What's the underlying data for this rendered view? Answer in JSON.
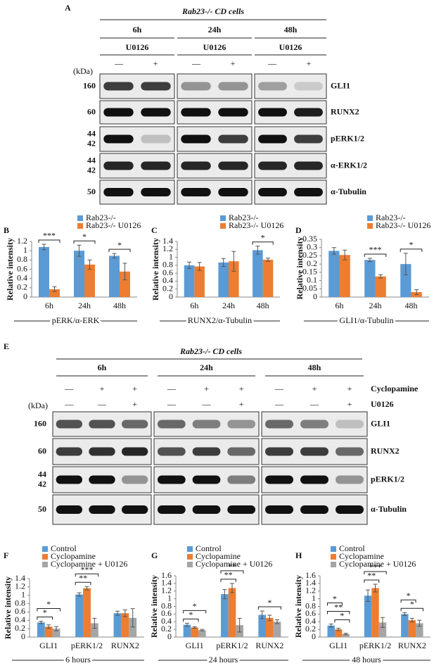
{
  "panel_a": {
    "label": "A",
    "title": "Rab23-/- CD cells",
    "kda_header": "(kDa)",
    "groups": [
      {
        "time": "6h",
        "treatment": "U0126",
        "lanes": [
          "—",
          "+"
        ]
      },
      {
        "time": "24h",
        "treatment": "U0126",
        "lanes": [
          "—",
          "+"
        ]
      },
      {
        "time": "48h",
        "treatment": "U0126",
        "lanes": [
          "—",
          "+"
        ]
      }
    ],
    "rows": [
      {
        "protein": "GLI1",
        "kda": [
          160
        ]
      },
      {
        "protein": "RUNX2",
        "kda": [
          60
        ]
      },
      {
        "protein": "pERK1/2",
        "kda": [
          44,
          42
        ]
      },
      {
        "protein": "α-ERK1/2",
        "kda": [
          44,
          42
        ]
      },
      {
        "protein": "α-Tubulin",
        "kda": [
          50
        ]
      }
    ]
  },
  "panel_e": {
    "label": "E",
    "title": "Rab23-/- CD cells",
    "kda_header": "(kDa)",
    "times": [
      "6h",
      "24h",
      "48h"
    ],
    "treatments": [
      {
        "name": "Cyclopamine",
        "signs": [
          "—",
          "+",
          "+",
          "—",
          "+",
          "+",
          "—",
          "+",
          "+"
        ]
      },
      {
        "name": "U0126",
        "signs": [
          "—",
          "—",
          "+",
          "—",
          "—",
          "+",
          "—",
          "—",
          "+"
        ]
      }
    ],
    "rows": [
      {
        "protein": "GLI1",
        "kda": [
          160
        ]
      },
      {
        "protein": "RUNX2",
        "kda": [
          60
        ]
      },
      {
        "protein": "pERK1/2",
        "kda": [
          44,
          42
        ]
      },
      {
        "protein": "α-Tubulin",
        "kda": [
          50
        ]
      }
    ]
  },
  "chart_data": [
    {
      "type": "bar",
      "label": "B",
      "y_label": "Relative intensity",
      "x_label": "pERK/α-ERK",
      "categories": [
        "6h",
        "24h",
        "48h"
      ],
      "ylim": [
        0,
        1.2
      ],
      "yticks": [
        0,
        0.2,
        0.4,
        0.6,
        0.8,
        1,
        1.2
      ],
      "series": [
        {
          "name": "Rab23-/-",
          "color": "#5b9bd5",
          "values": [
            1.08,
            1.0,
            0.89
          ],
          "errors": [
            0.06,
            0.12,
            0.05
          ]
        },
        {
          "name": "Rab23-/- U0126",
          "color": "#ed7d31",
          "values": [
            0.17,
            0.7,
            0.55
          ],
          "errors": [
            0.05,
            0.1,
            0.18
          ]
        }
      ],
      "significance": [
        {
          "text": "***",
          "category": "6h"
        },
        {
          "text": "*",
          "category": "24h"
        },
        {
          "text": "*",
          "category": "48h"
        }
      ]
    },
    {
      "type": "bar",
      "label": "C",
      "y_label": "Relative intensity",
      "x_label": "RUNX2/α-Tubulin",
      "categories": [
        "6h",
        "24h",
        "48h"
      ],
      "ylim": [
        0,
        1.4
      ],
      "yticks": [
        0,
        0.2,
        0.4,
        0.6,
        0.8,
        1,
        1.2,
        1.4
      ],
      "series": [
        {
          "name": "Rab23-/-",
          "color": "#5b9bd5",
          "values": [
            0.8,
            0.87,
            1.18
          ],
          "errors": [
            0.08,
            0.1,
            0.1
          ]
        },
        {
          "name": "Rab23-/- U0126",
          "color": "#ed7d31",
          "values": [
            0.77,
            0.9,
            0.94
          ],
          "errors": [
            0.1,
            0.25,
            0.04
          ]
        }
      ],
      "significance": [
        {
          "text": "*",
          "category": "48h"
        }
      ]
    },
    {
      "type": "bar",
      "label": "D",
      "y_label": "Relative intensity",
      "x_label": "GLI1/α-Tubulin",
      "categories": [
        "6h",
        "24h",
        "48h"
      ],
      "ylim": [
        0,
        0.35
      ],
      "yticks": [
        0,
        0.05,
        0.1,
        0.15,
        0.2,
        0.25,
        0.3,
        0.35
      ],
      "series": [
        {
          "name": "Rab23-/-",
          "color": "#5b9bd5",
          "values": [
            0.28,
            0.225,
            0.2
          ],
          "errors": [
            0.02,
            0.01,
            0.065
          ]
        },
        {
          "name": "Rab23-/- U0126",
          "color": "#ed7d31",
          "values": [
            0.255,
            0.125,
            0.03
          ],
          "errors": [
            0.03,
            0.01,
            0.015
          ]
        }
      ],
      "significance": [
        {
          "text": "***",
          "category": "24h"
        },
        {
          "text": "*",
          "category": "48h"
        }
      ]
    },
    {
      "type": "bar",
      "label": "F",
      "y_label": "Relative intensity",
      "x_label": "6 hours",
      "categories": [
        "GLI1",
        "pERK1/2",
        "RUNX2"
      ],
      "ylim": [
        0,
        1.4
      ],
      "yticks": [
        0,
        0.2,
        0.4,
        0.6,
        0.8,
        1,
        1.2,
        1.4
      ],
      "series": [
        {
          "name": "Control",
          "color": "#5b9bd5",
          "values": [
            0.35,
            1.02,
            0.57
          ],
          "errors": [
            0.03,
            0.04,
            0.05
          ]
        },
        {
          "name": "Cyclopamine",
          "color": "#ed7d31",
          "values": [
            0.25,
            1.17,
            0.57
          ],
          "errors": [
            0.04,
            0.04,
            0.08
          ]
        },
        {
          "name": "Cyclopamine + U0126",
          "color": "#a5a5a5",
          "values": [
            0.2,
            0.33,
            0.46
          ],
          "errors": [
            0.05,
            0.12,
            0.22
          ]
        }
      ],
      "significance": [
        {
          "text": "*",
          "category": "GLI1",
          "between": [
            "Control",
            "Cyclopamine"
          ]
        },
        {
          "text": "*",
          "category": "GLI1",
          "between": [
            "Control",
            "Cyclopamine + U0126"
          ]
        },
        {
          "text": "**",
          "category": "pERK1/2",
          "between": [
            "Control",
            "Cyclopamine"
          ]
        },
        {
          "text": "***",
          "category": "pERK1/2",
          "between": [
            "Control",
            "Cyclopamine + U0126"
          ]
        }
      ]
    },
    {
      "type": "bar",
      "label": "G",
      "y_label": "Relative intensity",
      "x_label": "24 hours",
      "categories": [
        "GLI1",
        "pERK1/2",
        "RUNX2"
      ],
      "ylim": [
        0,
        1.6
      ],
      "yticks": [
        0,
        0.2,
        0.4,
        0.6,
        0.8,
        1,
        1.2,
        1.4,
        1.6
      ],
      "series": [
        {
          "name": "Control",
          "color": "#5b9bd5",
          "values": [
            0.32,
            1.12,
            0.58
          ],
          "errors": [
            0.04,
            0.12,
            0.1
          ]
        },
        {
          "name": "Cyclopamine",
          "color": "#ed7d31",
          "values": [
            0.25,
            1.28,
            0.5
          ],
          "errors": [
            0.02,
            0.12,
            0.07
          ]
        },
        {
          "name": "Cyclopamine + U0126",
          "color": "#a5a5a5",
          "values": [
            0.18,
            0.31,
            0.4
          ],
          "errors": [
            0.02,
            0.18,
            0.05
          ]
        }
      ],
      "significance": [
        {
          "text": "*",
          "category": "GLI1",
          "between": [
            "Control",
            "Cyclopamine"
          ]
        },
        {
          "text": "*",
          "category": "GLI1",
          "between": [
            "Control",
            "Cyclopamine + U0126"
          ]
        },
        {
          "text": "**",
          "category": "pERK1/2",
          "between": [
            "Control",
            "Cyclopamine"
          ]
        },
        {
          "text": "**",
          "category": "pERK1/2",
          "between": [
            "Control",
            "Cyclopamine + U0126"
          ]
        },
        {
          "text": "*",
          "category": "RUNX2",
          "between": [
            "Control",
            "Cyclopamine + U0126"
          ]
        }
      ]
    },
    {
      "type": "bar",
      "label": "H",
      "y_label": "Relative intensity",
      "x_label": "48 hours",
      "categories": [
        "GLI1",
        "pERK1/2",
        "RUNX2"
      ],
      "ylim": [
        0,
        1.6
      ],
      "yticks": [
        0,
        0.2,
        0.4,
        0.6,
        0.8,
        1,
        1.2,
        1.4,
        1.6
      ],
      "series": [
        {
          "name": "Control",
          "color": "#5b9bd5",
          "values": [
            0.3,
            1.08,
            0.6
          ],
          "errors": [
            0.04,
            0.15,
            0.04
          ]
        },
        {
          "name": "Cyclopamine",
          "color": "#ed7d31",
          "values": [
            0.2,
            1.28,
            0.44
          ],
          "errors": [
            0.03,
            0.1,
            0.05
          ]
        },
        {
          "name": "Cyclopamine + U0126",
          "color": "#a5a5a5",
          "values": [
            0.08,
            0.38,
            0.36
          ],
          "errors": [
            0.02,
            0.13,
            0.08
          ]
        }
      ],
      "significance": [
        {
          "text": "*",
          "category": "GLI1",
          "between": [
            "Cyclopamine",
            "Cyclopamine + U0126"
          ]
        },
        {
          "text": "**",
          "category": "GLI1",
          "between": [
            "Control",
            "Cyclopamine + U0126"
          ]
        },
        {
          "text": "*",
          "category": "GLI1",
          "between": [
            "Control",
            "Cyclopamine"
          ]
        },
        {
          "text": "**",
          "category": "pERK1/2",
          "between": [
            "Control",
            "Cyclopamine"
          ]
        },
        {
          "text": "***",
          "category": "pERK1/2",
          "between": [
            "Control",
            "Cyclopamine + U0126"
          ]
        },
        {
          "text": "*",
          "category": "RUNX2",
          "between": [
            "Control",
            "Cyclopamine + U0126"
          ]
        },
        {
          "text": "*",
          "category": "RUNX2",
          "between": [
            "Control",
            "Cyclopamine"
          ]
        }
      ]
    }
  ]
}
